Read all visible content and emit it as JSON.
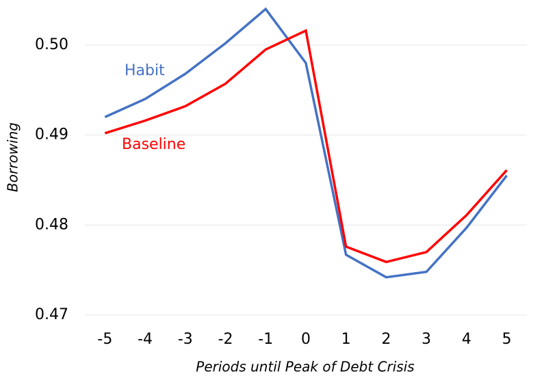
{
  "chart_data": {
    "type": "line",
    "x_label": "Periods until Peak of Debt Crisis",
    "y_label": "Borrowing",
    "x": [
      -5,
      -4,
      -3,
      -2,
      -1,
      0,
      1,
      2,
      3,
      4,
      5
    ],
    "series": [
      {
        "name": "Habit",
        "color": "#4472c4",
        "values": [
          0.492,
          0.494,
          0.4968,
          0.5002,
          0.504,
          0.498,
          0.4767,
          0.4742,
          0.4748,
          0.4797,
          0.4855
        ]
      },
      {
        "name": "Baseline",
        "color": "#ff0000",
        "values": [
          0.4902,
          0.4916,
          0.4932,
          0.4957,
          0.4995,
          0.5016,
          0.4776,
          0.4759,
          0.477,
          0.4811,
          0.4861
        ]
      }
    ],
    "xlim": [
      -5.5,
      5.5
    ],
    "xticks": [
      -5,
      -4,
      -3,
      -2,
      -1,
      0,
      1,
      2,
      3,
      4,
      5
    ],
    "ylim": [
      0.47,
      0.505
    ],
    "yticks": [
      0.47,
      0.48,
      0.49,
      {
        "value": 0.5,
        "label": "0.50"
      }
    ],
    "grid": true
  }
}
